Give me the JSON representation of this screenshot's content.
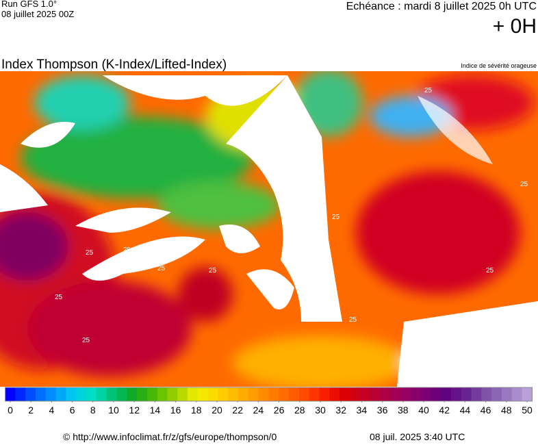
{
  "header": {
    "model": "Run GFS 1.0°",
    "run": "08 juillet 2025 00Z",
    "valid": "Echéance : mardi 8 juillet 2025 0h UTC",
    "offset": "+ 0H"
  },
  "title": "Index Thompson (K-Index/Lifted-Index)",
  "subtitle": "Indice de sévérité orageuse",
  "map": {
    "contour_labels": [
      "25",
      "25",
      "25",
      "25",
      "25",
      "25",
      "25",
      "25",
      "25",
      "25",
      "25"
    ]
  },
  "colorbar": {
    "ticks": [
      0,
      2,
      4,
      6,
      8,
      10,
      12,
      14,
      16,
      18,
      20,
      22,
      24,
      26,
      28,
      30,
      32,
      34,
      36,
      38,
      40,
      42,
      44,
      46,
      48,
      50
    ],
    "min": 0,
    "max": 50
  },
  "footer": {
    "source": "© http://www.infoclimat.fr/z/gfs/europe/thompson/0",
    "timestamp": "08 juil. 2025  3:40 UTC"
  }
}
